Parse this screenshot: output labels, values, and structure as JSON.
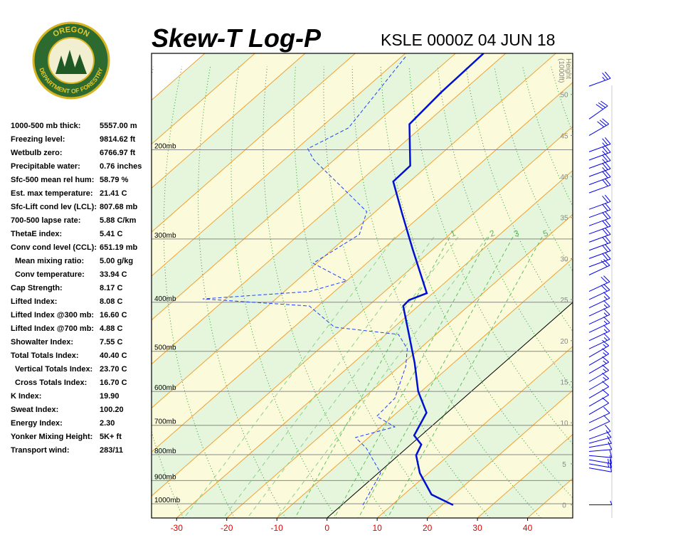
{
  "header": {
    "title": "Skew-T Log-P",
    "station": "KSLE 0000Z 04 JUN 18",
    "logo": {
      "top": "OREGON",
      "bottom": "DEPARTMENT OF FORESTRY"
    }
  },
  "indices": [
    {
      "label": "1000-500 mb thick:",
      "value": "5557.00 m",
      "indent": false
    },
    {
      "label": "Freezing level:",
      "value": "9814.62 ft",
      "indent": false
    },
    {
      "label": "Wetbulb zero:",
      "value": "6766.97 ft",
      "indent": false
    },
    {
      "label": "Precipitable water:",
      "value": "0.76 inches",
      "indent": false
    },
    {
      "label": "Sfc-500 mean rel hum:",
      "value": "58.79 %",
      "indent": false
    },
    {
      "label": "Est. max temperature:",
      "value": "21.41 C",
      "indent": false
    },
    {
      "label": "Sfc-Lift cond lev (LCL):",
      "value": "807.68 mb",
      "indent": false
    },
    {
      "label": "700-500 lapse rate:",
      "value": "5.88 C/km",
      "indent": false
    },
    {
      "label": "ThetaE index:",
      "value": "5.41 C",
      "indent": false
    },
    {
      "label": "Conv cond level (CCL):",
      "value": "651.19 mb",
      "indent": false
    },
    {
      "label": "Mean mixing ratio:",
      "value": "5.00 g/kg",
      "indent": true
    },
    {
      "label": "Conv temperature:",
      "value": "33.94 C",
      "indent": true
    },
    {
      "label": "Cap Strength:",
      "value": "8.17 C",
      "indent": false
    },
    {
      "label": "Lifted Index:",
      "value": "8.08 C",
      "indent": false
    },
    {
      "label": "Lifted Index @300 mb:",
      "value": "16.60 C",
      "indent": false
    },
    {
      "label": "Lifted Index @700 mb:",
      "value": "4.88 C",
      "indent": false
    },
    {
      "label": "Showalter Index:",
      "value": "7.55 C",
      "indent": false
    },
    {
      "label": "Total Totals Index:",
      "value": "40.40 C",
      "indent": false
    },
    {
      "label": "Vertical Totals Index:",
      "value": "23.70 C",
      "indent": true
    },
    {
      "label": "Cross Totals Index:",
      "value": "16.70 C",
      "indent": true
    },
    {
      "label": "K Index:",
      "value": "19.90",
      "indent": false
    },
    {
      "label": "Sweat Index:",
      "value": "100.20",
      "indent": false
    },
    {
      "label": "Energy Index:",
      "value": "2.30",
      "indent": false
    },
    {
      "label": "Yonker Mixing Height:",
      "value": "5K+ ft",
      "indent": false
    },
    {
      "label": "Transport wind:",
      "value": "283/11",
      "indent": false
    }
  ],
  "chart_data": {
    "type": "skewt",
    "log_y": true,
    "xlim": [
      -35,
      49
    ],
    "xticks": [
      -30,
      -20,
      -10,
      0,
      10,
      20,
      30,
      40
    ],
    "xtick_color": "#e00000",
    "ylim": [
      1067,
      129
    ],
    "yticks": [
      {
        "value": 200,
        "label": "200mb"
      },
      {
        "value": 300,
        "label": "300mb"
      },
      {
        "value": 400,
        "label": "400mb"
      },
      {
        "value": 500,
        "label": "500mb"
      },
      {
        "value": 600,
        "label": "600mb"
      },
      {
        "value": 700,
        "label": "700mb"
      },
      {
        "value": 800,
        "label": "800mb"
      },
      {
        "value": 900,
        "label": "900mb"
      },
      {
        "value": 1000,
        "label": "1000mb"
      }
    ],
    "y2lim": [
      -1.6,
      55
    ],
    "y2ticks": [
      0,
      5,
      10,
      15,
      20,
      25,
      30,
      35,
      40,
      45,
      50
    ],
    "y2_label": [
      "Height",
      "(1000ft)"
    ],
    "mixing_ratio_labels": [
      "1",
      "2",
      "3",
      "5"
    ],
    "series": [
      {
        "style": "solid",
        "color": "#0010d0",
        "pressure": [
          1006,
          959,
          870,
          802,
          764,
          733,
          661,
          600,
          527,
          463,
          407,
          396,
          384,
          314,
          267,
          231,
          215,
          178,
          154,
          129
        ],
        "temperature": [
          22.2,
          15.5,
          8.3,
          3.5,
          2.1,
          -1.4,
          -4.1,
          -10.6,
          -17.8,
          -25.4,
          -33.0,
          -33.2,
          -31.2,
          -44.1,
          -54.3,
          -63.3,
          -63.5,
          -73.1,
          -74.0,
          -74.4
        ]
      },
      {
        "style": "dashed",
        "color": "#2040ff",
        "pressure": [
          1006,
          870,
          777,
          740,
          705,
          672,
          619,
          535,
          494,
          463,
          448,
          407,
          394,
          381,
          363,
          335,
          294,
          265,
          209,
          199,
          181,
          131
        ],
        "temperature": [
          4.2,
          0.5,
          -8.0,
          -12.6,
          -7.2,
          -13.2,
          -13.7,
          -18.8,
          -22.5,
          -27.5,
          -41.9,
          -51.7,
          -74.6,
          -55.0,
          -50.0,
          -60.7,
          -58.0,
          -61.7,
          -84.2,
          -87.8,
          -84.4,
          -89.2
        ]
      }
    ],
    "wind": {
      "color": "#0000ee",
      "heights": [
        0,
        4.5,
        5,
        5.5,
        6,
        6.5,
        7,
        7.5,
        8,
        9,
        10,
        11,
        12,
        13,
        14,
        15,
        16,
        17,
        18,
        19,
        20,
        21,
        22,
        23,
        24,
        25,
        26,
        28,
        29,
        30,
        31,
        32,
        33,
        34,
        35,
        36,
        38,
        39,
        40,
        41,
        42,
        43,
        45,
        47,
        51
      ],
      "directions": [
        90,
        100,
        100,
        100,
        95,
        85,
        80,
        75,
        70,
        65,
        65,
        60,
        60,
        60,
        60,
        60,
        60,
        60,
        60,
        65,
        65,
        65,
        65,
        65,
        65,
        65,
        65,
        65,
        70,
        70,
        70,
        70,
        70,
        70,
        70,
        70,
        70,
        70,
        70,
        70,
        70,
        70,
        60,
        55,
        70
      ],
      "speeds": [
        5,
        10,
        15,
        15,
        10,
        10,
        10,
        10,
        10,
        10,
        10,
        10,
        10,
        10,
        15,
        15,
        15,
        15,
        15,
        15,
        15,
        15,
        15,
        15,
        15,
        20,
        20,
        20,
        20,
        20,
        20,
        20,
        20,
        20,
        20,
        20,
        20,
        20,
        25,
        25,
        25,
        25,
        30,
        30,
        25
      ]
    }
  }
}
